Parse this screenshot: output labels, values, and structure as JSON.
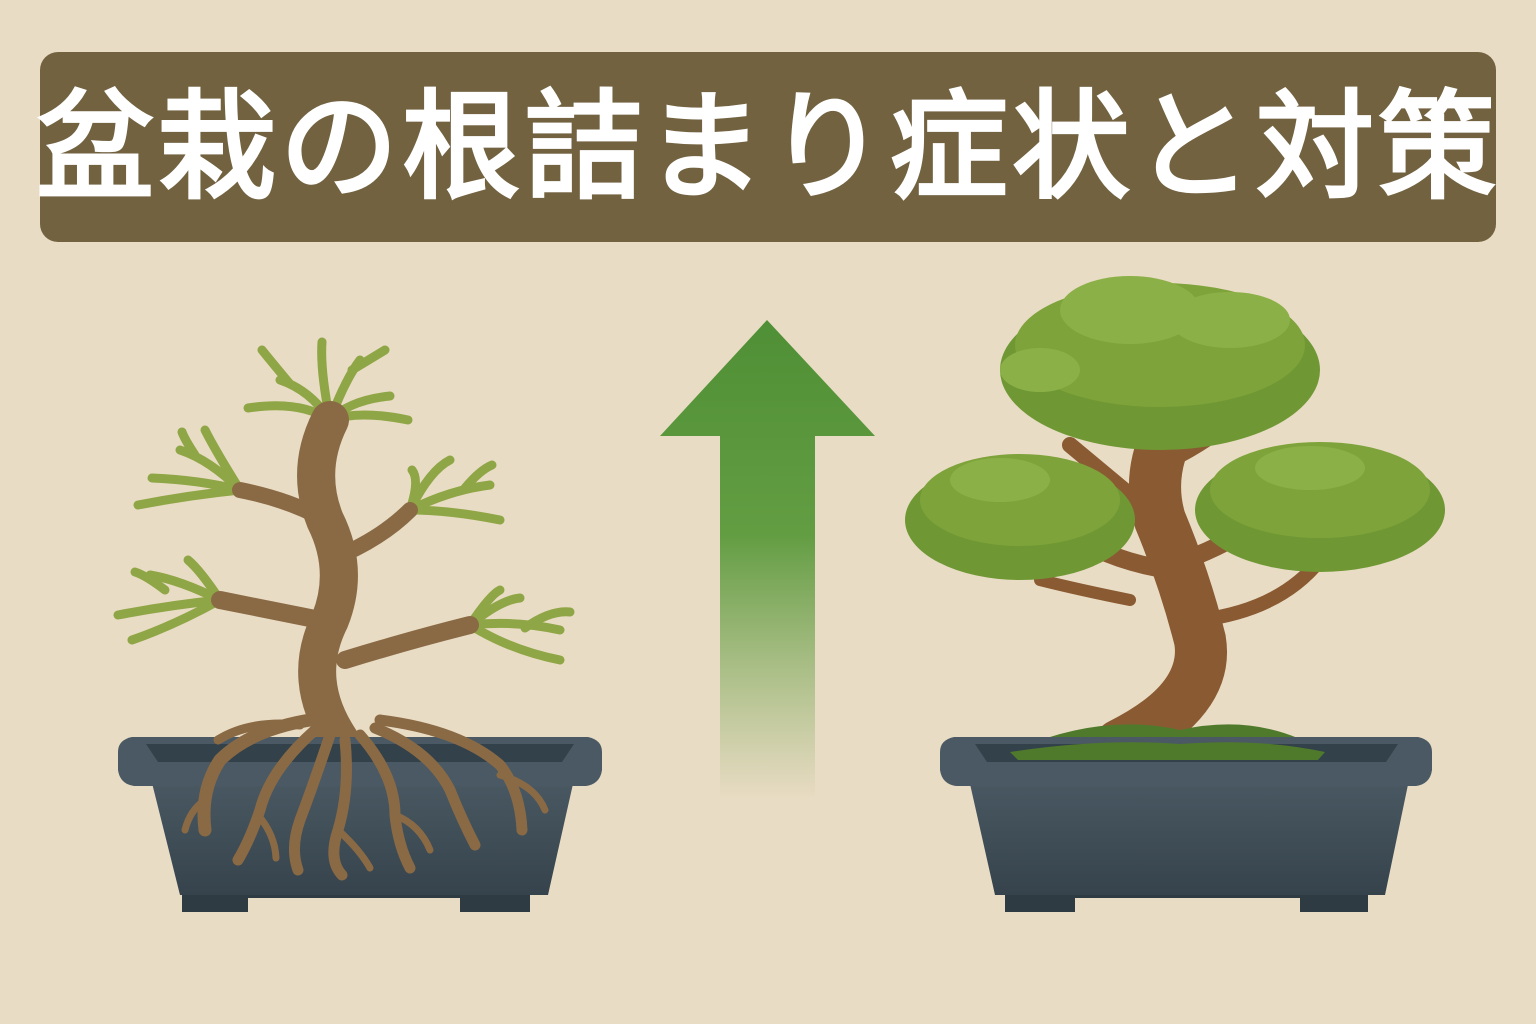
{
  "title": "盆栽の根詰まり症状と対策",
  "illustration": {
    "left_panel": "bonsai-with-root-bound-roots",
    "right_panel": "healthy-bonsai",
    "arrow": "upward-green-arrow"
  },
  "colors": {
    "background": "#e9dcc4",
    "banner": "#726240",
    "title_text": "#ffffff",
    "pot": "#3f4e58",
    "trunk": "#8a6a45",
    "sparse_foliage": "#8fa646",
    "dense_foliage": "#7ea33a",
    "arrow": "#4f8f35"
  }
}
